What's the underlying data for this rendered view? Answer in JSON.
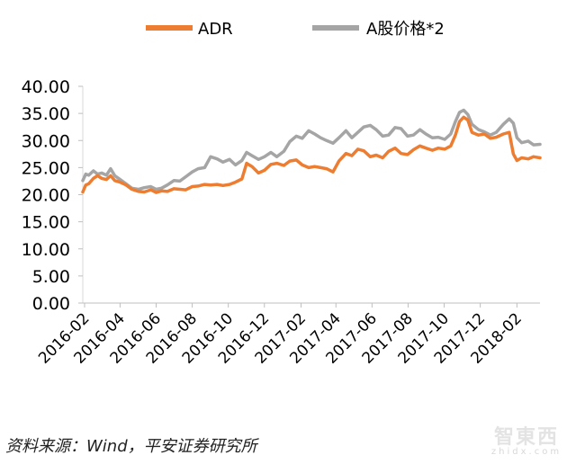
{
  "chart_data": {
    "type": "line",
    "title": "",
    "xlabel": "",
    "ylabel": "",
    "ylim": [
      0,
      40
    ],
    "yticks": [
      "0.00",
      "5.00",
      "10.00",
      "15.00",
      "20.00",
      "25.00",
      "30.00",
      "35.00",
      "40.00"
    ],
    "xticks": [
      "2016-02",
      "2016-04",
      "2016-06",
      "2016-08",
      "2016-10",
      "2016-12",
      "2017-02",
      "2017-04",
      "2017-06",
      "2017-08",
      "2017-10",
      "2017-12",
      "2018-02"
    ],
    "grid": false,
    "legend_position": "top",
    "x_start": "2016-01-29",
    "x_end": "2018-03-12",
    "series": [
      {
        "name": "ADR",
        "color": "#ED7D31",
        "points": [
          [
            "2016-01-29",
            20.5
          ],
          [
            "2016-02-03",
            21.8
          ],
          [
            "2016-02-08",
            22.0
          ],
          [
            "2016-02-16",
            23.0
          ],
          [
            "2016-02-23",
            23.5
          ],
          [
            "2016-03-01",
            23.0
          ],
          [
            "2016-03-09",
            22.8
          ],
          [
            "2016-03-16",
            23.5
          ],
          [
            "2016-03-23",
            22.6
          ],
          [
            "2016-04-01",
            22.3
          ],
          [
            "2016-04-11",
            21.8
          ],
          [
            "2016-04-21",
            21.0
          ],
          [
            "2016-05-02",
            20.6
          ],
          [
            "2016-05-12",
            20.5
          ],
          [
            "2016-05-23",
            20.9
          ],
          [
            "2016-06-01",
            20.4
          ],
          [
            "2016-06-10",
            20.7
          ],
          [
            "2016-06-20",
            20.6
          ],
          [
            "2016-07-01",
            21.1
          ],
          [
            "2016-07-11",
            21.0
          ],
          [
            "2016-07-21",
            20.9
          ],
          [
            "2016-08-01",
            21.5
          ],
          [
            "2016-08-11",
            21.6
          ],
          [
            "2016-08-22",
            21.9
          ],
          [
            "2016-09-01",
            21.8
          ],
          [
            "2016-09-12",
            21.9
          ],
          [
            "2016-09-22",
            21.7
          ],
          [
            "2016-10-03",
            21.9
          ],
          [
            "2016-10-13",
            22.3
          ],
          [
            "2016-10-24",
            22.9
          ],
          [
            "2016-11-01",
            25.8
          ],
          [
            "2016-11-10",
            25.2
          ],
          [
            "2016-11-21",
            24.0
          ],
          [
            "2016-12-01",
            24.5
          ],
          [
            "2016-12-12",
            25.6
          ],
          [
            "2016-12-22",
            25.8
          ],
          [
            "2017-01-03",
            25.4
          ],
          [
            "2017-01-13",
            26.2
          ],
          [
            "2017-01-24",
            26.4
          ],
          [
            "2017-02-03",
            25.5
          ],
          [
            "2017-02-14",
            25.0
          ],
          [
            "2017-02-24",
            25.2
          ],
          [
            "2017-03-06",
            25.0
          ],
          [
            "2017-03-16",
            24.8
          ],
          [
            "2017-03-27",
            24.2
          ],
          [
            "2017-04-06",
            26.2
          ],
          [
            "2017-04-18",
            27.6
          ],
          [
            "2017-04-28",
            27.2
          ],
          [
            "2017-05-08",
            28.4
          ],
          [
            "2017-05-18",
            28.1
          ],
          [
            "2017-05-29",
            27.0
          ],
          [
            "2017-06-08",
            27.3
          ],
          [
            "2017-06-19",
            26.8
          ],
          [
            "2017-06-29",
            28.0
          ],
          [
            "2017-07-10",
            28.6
          ],
          [
            "2017-07-20",
            27.6
          ],
          [
            "2017-07-31",
            27.4
          ],
          [
            "2017-08-10",
            28.3
          ],
          [
            "2017-08-21",
            29.0
          ],
          [
            "2017-08-31",
            28.6
          ],
          [
            "2017-09-11",
            28.2
          ],
          [
            "2017-09-21",
            28.6
          ],
          [
            "2017-10-02",
            28.4
          ],
          [
            "2017-10-12",
            29.0
          ],
          [
            "2017-10-20",
            31.0
          ],
          [
            "2017-10-27",
            33.5
          ],
          [
            "2017-11-03",
            34.3
          ],
          [
            "2017-11-10",
            33.8
          ],
          [
            "2017-11-17",
            31.5
          ],
          [
            "2017-11-28",
            31.0
          ],
          [
            "2017-12-08",
            31.2
          ],
          [
            "2017-12-18",
            30.4
          ],
          [
            "2017-12-28",
            30.6
          ],
          [
            "2018-01-09",
            31.2
          ],
          [
            "2018-01-19",
            31.5
          ],
          [
            "2018-01-26",
            27.5
          ],
          [
            "2018-02-01",
            26.3
          ],
          [
            "2018-02-09",
            26.8
          ],
          [
            "2018-02-20",
            26.6
          ],
          [
            "2018-03-01",
            27.0
          ],
          [
            "2018-03-12",
            26.8
          ]
        ]
      },
      {
        "name": "A股价格*2",
        "color": "#A5A5A5",
        "points": [
          [
            "2016-01-29",
            22.6
          ],
          [
            "2016-02-03",
            23.8
          ],
          [
            "2016-02-08",
            23.6
          ],
          [
            "2016-02-16",
            24.4
          ],
          [
            "2016-02-23",
            23.8
          ],
          [
            "2016-03-01",
            24.0
          ],
          [
            "2016-03-09",
            23.6
          ],
          [
            "2016-03-16",
            24.8
          ],
          [
            "2016-03-23",
            23.5
          ],
          [
            "2016-04-01",
            22.8
          ],
          [
            "2016-04-11",
            22.0
          ],
          [
            "2016-04-21",
            21.2
          ],
          [
            "2016-05-02",
            21.0
          ],
          [
            "2016-05-12",
            21.3
          ],
          [
            "2016-05-23",
            21.5
          ],
          [
            "2016-06-01",
            21.0
          ],
          [
            "2016-06-10",
            21.2
          ],
          [
            "2016-06-20",
            21.8
          ],
          [
            "2016-07-01",
            22.6
          ],
          [
            "2016-07-11",
            22.5
          ],
          [
            "2016-07-21",
            23.3
          ],
          [
            "2016-08-01",
            24.2
          ],
          [
            "2016-08-11",
            24.8
          ],
          [
            "2016-08-22",
            25.0
          ],
          [
            "2016-09-01",
            27.0
          ],
          [
            "2016-09-12",
            26.6
          ],
          [
            "2016-09-22",
            26.0
          ],
          [
            "2016-10-03",
            26.5
          ],
          [
            "2016-10-13",
            25.5
          ],
          [
            "2016-10-24",
            26.3
          ],
          [
            "2016-11-01",
            27.8
          ],
          [
            "2016-11-10",
            27.2
          ],
          [
            "2016-11-21",
            26.5
          ],
          [
            "2016-12-01",
            27.0
          ],
          [
            "2016-12-12",
            27.8
          ],
          [
            "2016-12-22",
            27.0
          ],
          [
            "2017-01-03",
            28.0
          ],
          [
            "2017-01-13",
            29.8
          ],
          [
            "2017-01-24",
            30.8
          ],
          [
            "2017-02-03",
            30.4
          ],
          [
            "2017-02-14",
            31.8
          ],
          [
            "2017-02-24",
            31.2
          ],
          [
            "2017-03-06",
            30.5
          ],
          [
            "2017-03-16",
            30.0
          ],
          [
            "2017-03-27",
            29.5
          ],
          [
            "2017-04-06",
            30.5
          ],
          [
            "2017-04-18",
            31.8
          ],
          [
            "2017-04-28",
            30.5
          ],
          [
            "2017-05-08",
            31.5
          ],
          [
            "2017-05-18",
            32.5
          ],
          [
            "2017-05-29",
            32.8
          ],
          [
            "2017-06-08",
            32.0
          ],
          [
            "2017-06-19",
            30.8
          ],
          [
            "2017-06-29",
            31.0
          ],
          [
            "2017-07-10",
            32.4
          ],
          [
            "2017-07-20",
            32.2
          ],
          [
            "2017-07-31",
            30.8
          ],
          [
            "2017-08-10",
            31.0
          ],
          [
            "2017-08-21",
            32.0
          ],
          [
            "2017-08-31",
            31.2
          ],
          [
            "2017-09-11",
            30.5
          ],
          [
            "2017-09-21",
            30.6
          ],
          [
            "2017-10-02",
            30.2
          ],
          [
            "2017-10-12",
            31.2
          ],
          [
            "2017-10-20",
            33.5
          ],
          [
            "2017-10-27",
            35.2
          ],
          [
            "2017-11-03",
            35.6
          ],
          [
            "2017-11-10",
            34.8
          ],
          [
            "2017-11-17",
            33.0
          ],
          [
            "2017-11-28",
            32.0
          ],
          [
            "2017-12-08",
            31.6
          ],
          [
            "2017-12-18",
            31.0
          ],
          [
            "2017-12-28",
            31.5
          ],
          [
            "2018-01-09",
            33.0
          ],
          [
            "2018-01-19",
            34.0
          ],
          [
            "2018-01-26",
            33.2
          ],
          [
            "2018-02-01",
            30.5
          ],
          [
            "2018-02-09",
            29.6
          ],
          [
            "2018-02-20",
            29.9
          ],
          [
            "2018-03-01",
            29.2
          ],
          [
            "2018-03-12",
            29.3
          ]
        ]
      }
    ]
  },
  "footer": {
    "source": "资料来源：Wind，平安证券研究所"
  },
  "watermark": {
    "mark": "智東西",
    "sub": "zhidx.com"
  }
}
